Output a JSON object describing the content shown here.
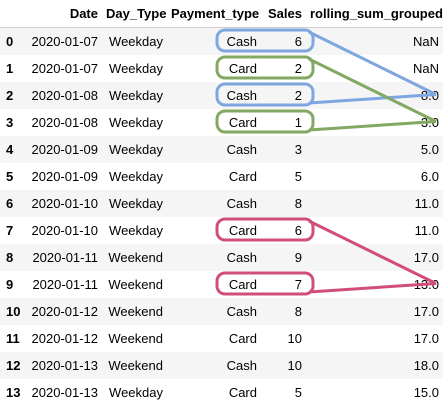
{
  "table": {
    "columns": [
      "",
      "Date",
      "Day_Type",
      "Payment_type",
      "Sales",
      "rolling_sum_grouped"
    ],
    "rows": [
      {
        "index": "0",
        "date": "2020-01-07",
        "day_type": "Weekday",
        "payment_type": "Cash",
        "sales": "6",
        "rolling": "NaN"
      },
      {
        "index": "1",
        "date": "2020-01-07",
        "day_type": "Weekday",
        "payment_type": "Card",
        "sales": "2",
        "rolling": "NaN"
      },
      {
        "index": "2",
        "date": "2020-01-08",
        "day_type": "Weekday",
        "payment_type": "Cash",
        "sales": "2",
        "rolling": "8.0"
      },
      {
        "index": "3",
        "date": "2020-01-08",
        "day_type": "Weekday",
        "payment_type": "Card",
        "sales": "1",
        "rolling": "3.0"
      },
      {
        "index": "4",
        "date": "2020-01-09",
        "day_type": "Weekday",
        "payment_type": "Cash",
        "sales": "3",
        "rolling": "5.0"
      },
      {
        "index": "5",
        "date": "2020-01-09",
        "day_type": "Weekday",
        "payment_type": "Card",
        "sales": "5",
        "rolling": "6.0"
      },
      {
        "index": "6",
        "date": "2020-01-10",
        "day_type": "Weekday",
        "payment_type": "Cash",
        "sales": "8",
        "rolling": "11.0"
      },
      {
        "index": "7",
        "date": "2020-01-10",
        "day_type": "Weekday",
        "payment_type": "Card",
        "sales": "6",
        "rolling": "11.0"
      },
      {
        "index": "8",
        "date": "2020-01-11",
        "day_type": "Weekend",
        "payment_type": "Cash",
        "sales": "9",
        "rolling": "17.0"
      },
      {
        "index": "9",
        "date": "2020-01-11",
        "day_type": "Weekend",
        "payment_type": "Card",
        "sales": "7",
        "rolling": "13.0"
      },
      {
        "index": "10",
        "date": "2020-01-12",
        "day_type": "Weekend",
        "payment_type": "Cash",
        "sales": "8",
        "rolling": "17.0"
      },
      {
        "index": "11",
        "date": "2020-01-12",
        "day_type": "Weekend",
        "payment_type": "Card",
        "sales": "10",
        "rolling": "17.0"
      },
      {
        "index": "12",
        "date": "2020-01-13",
        "day_type": "Weekend",
        "payment_type": "Cash",
        "sales": "10",
        "rolling": "18.0"
      },
      {
        "index": "13",
        "date": "2020-01-13",
        "day_type": "Weekday",
        "payment_type": "Card",
        "sales": "5",
        "rolling": "15.0"
      }
    ]
  },
  "annotations": {
    "colors": {
      "blue": "#7ea6e0",
      "green": "#82a864",
      "pink": "#d14d7c"
    },
    "groups": [
      {
        "color_key": "blue",
        "rows": [
          0,
          2
        ],
        "target_row": 2
      },
      {
        "color_key": "green",
        "rows": [
          1,
          3
        ],
        "target_row": 3
      },
      {
        "color_key": "pink",
        "rows": [
          7,
          9
        ],
        "target_row": 9
      }
    ]
  }
}
